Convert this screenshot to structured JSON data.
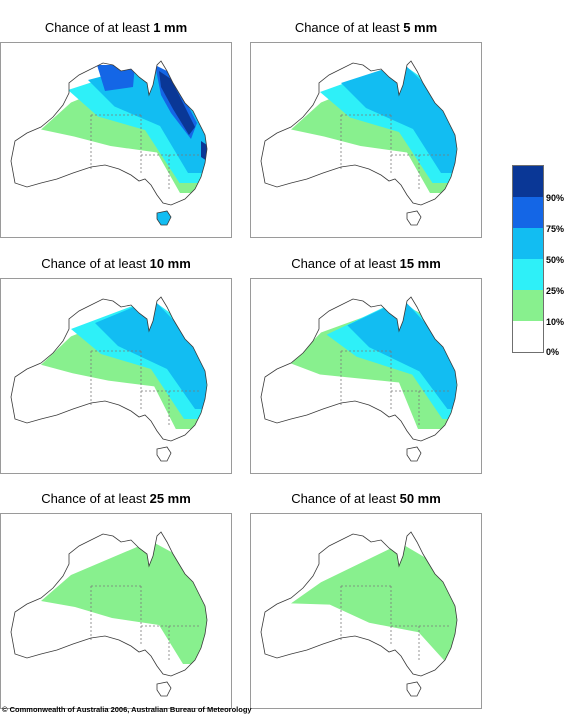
{
  "panels": [
    {
      "title_prefix": "Chance of at least ",
      "title_value": "1 mm",
      "levels": {
        "green": 0.35,
        "cyan": 0.65,
        "lightblue": 0.65,
        "blue": 0.28,
        "navy": 0.18
      }
    },
    {
      "title_prefix": "Chance of at least ",
      "title_value": "5 mm",
      "levels": {
        "green": 0.35,
        "cyan": 0.55,
        "lightblue": 0.5,
        "blue": 0.0,
        "navy": 0.0
      }
    },
    {
      "title_prefix": "Chance of at least ",
      "title_value": "10 mm",
      "levels": {
        "green": 0.42,
        "cyan": 0.5,
        "lightblue": 0.3,
        "blue": 0.0,
        "navy": 0.0
      }
    },
    {
      "title_prefix": "Chance of at least ",
      "title_value": "15 mm",
      "levels": {
        "green": 0.55,
        "cyan": 0.22,
        "lightblue": 0.18,
        "blue": 0.0,
        "navy": 0.0
      }
    },
    {
      "title_prefix": "Chance of at least ",
      "title_value": "25 mm",
      "levels": {
        "green": 0.3,
        "cyan": 0.0,
        "lightblue": 0.0,
        "blue": 0.0,
        "navy": 0.0
      }
    },
    {
      "title_prefix": "Chance of at least ",
      "title_value": "50 mm",
      "levels": {
        "green": 0.06,
        "cyan": 0.0,
        "lightblue": 0.0,
        "blue": 0.0,
        "navy": 0.0
      }
    }
  ],
  "legend": {
    "labels": [
      "90%",
      "75%",
      "50%",
      "25%",
      "10%",
      "0%"
    ],
    "colors": [
      "#0a3796",
      "#1466e6",
      "#12bdf2",
      "#2ef0f8",
      "#88f08e",
      "#ffffff"
    ]
  },
  "copyright": "© Commonwealth of Australia 2006, Australian Bureau of Meteorology"
}
